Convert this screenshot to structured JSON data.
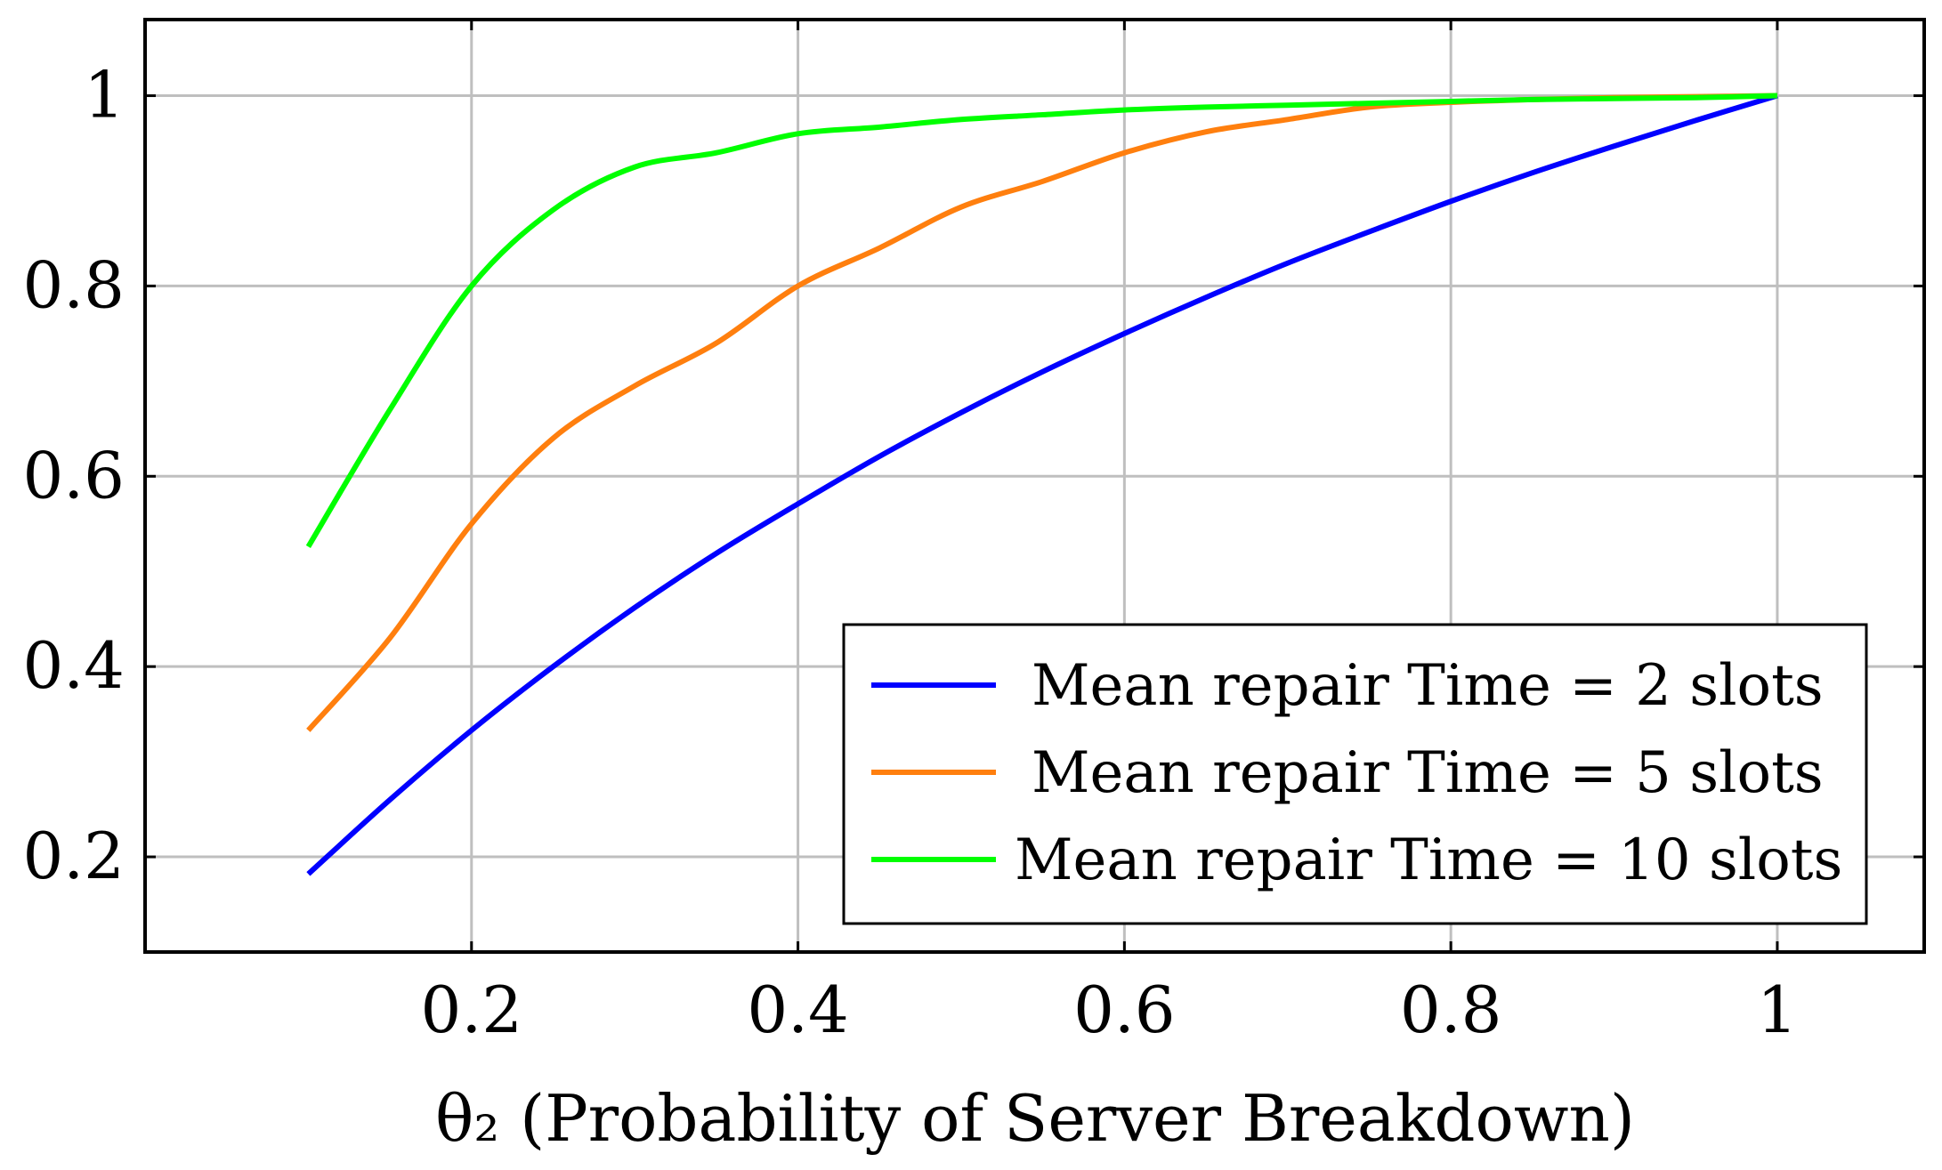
{
  "chart_data": {
    "type": "line",
    "xlabel": "θ₂ (Probability of Server Breakdown)",
    "ylabel": "",
    "xlim": [
      0.0,
      1.09
    ],
    "ylim": [
      0.1,
      1.08
    ],
    "xticks": [
      0.2,
      0.4,
      0.6,
      0.8,
      1.0
    ],
    "xtick_labels": [
      "0.2",
      "0.4",
      "0.6",
      "0.8",
      "1"
    ],
    "yticks": [
      0.2,
      0.4,
      0.6,
      0.8,
      1.0
    ],
    "ytick_labels": [
      "0.2",
      "0.4",
      "0.6",
      "0.8",
      "1"
    ],
    "grid": true,
    "legend_position": "bottom-right",
    "series": [
      {
        "name": "Mean repair Time = 2 slots",
        "color": "#0000ff",
        "x": [
          0.1,
          0.15,
          0.2,
          0.25,
          0.3,
          0.35,
          0.4,
          0.45,
          0.5,
          0.55,
          0.6,
          0.65,
          0.7,
          0.75,
          0.8,
          0.85,
          0.9,
          0.95,
          1.0
        ],
        "y": [
          0.182,
          0.26,
          0.333,
          0.4,
          0.462,
          0.519,
          0.571,
          0.621,
          0.667,
          0.71,
          0.75,
          0.788,
          0.824,
          0.857,
          0.889,
          0.919,
          0.947,
          0.974,
          1.0
        ]
      },
      {
        "name": "Mean repair Time = 5 slots",
        "color": "#ff7f0e",
        "x": [
          0.1,
          0.15,
          0.2,
          0.25,
          0.3,
          0.35,
          0.4,
          0.45,
          0.5,
          0.55,
          0.6,
          0.65,
          0.7,
          0.75,
          0.8,
          0.85,
          0.9,
          0.95,
          1.0
        ],
        "y": [
          0.333,
          0.43,
          0.55,
          0.64,
          0.695,
          0.74,
          0.8,
          0.84,
          0.883,
          0.91,
          0.94,
          0.962,
          0.975,
          0.988,
          0.993,
          0.996,
          0.998,
          0.999,
          1.0
        ]
      },
      {
        "name": "Mean repair Time = 10 slots",
        "color": "#00ff00",
        "x": [
          0.1,
          0.15,
          0.2,
          0.25,
          0.3,
          0.35,
          0.4,
          0.45,
          0.5,
          0.55,
          0.6,
          0.65,
          0.7,
          0.75,
          0.8,
          0.85,
          0.9,
          0.95,
          1.0
        ],
        "y": [
          0.526,
          0.67,
          0.8,
          0.88,
          0.925,
          0.94,
          0.96,
          0.967,
          0.975,
          0.98,
          0.985,
          0.988,
          0.99,
          0.992,
          0.994,
          0.996,
          0.997,
          0.998,
          1.0
        ]
      }
    ]
  }
}
